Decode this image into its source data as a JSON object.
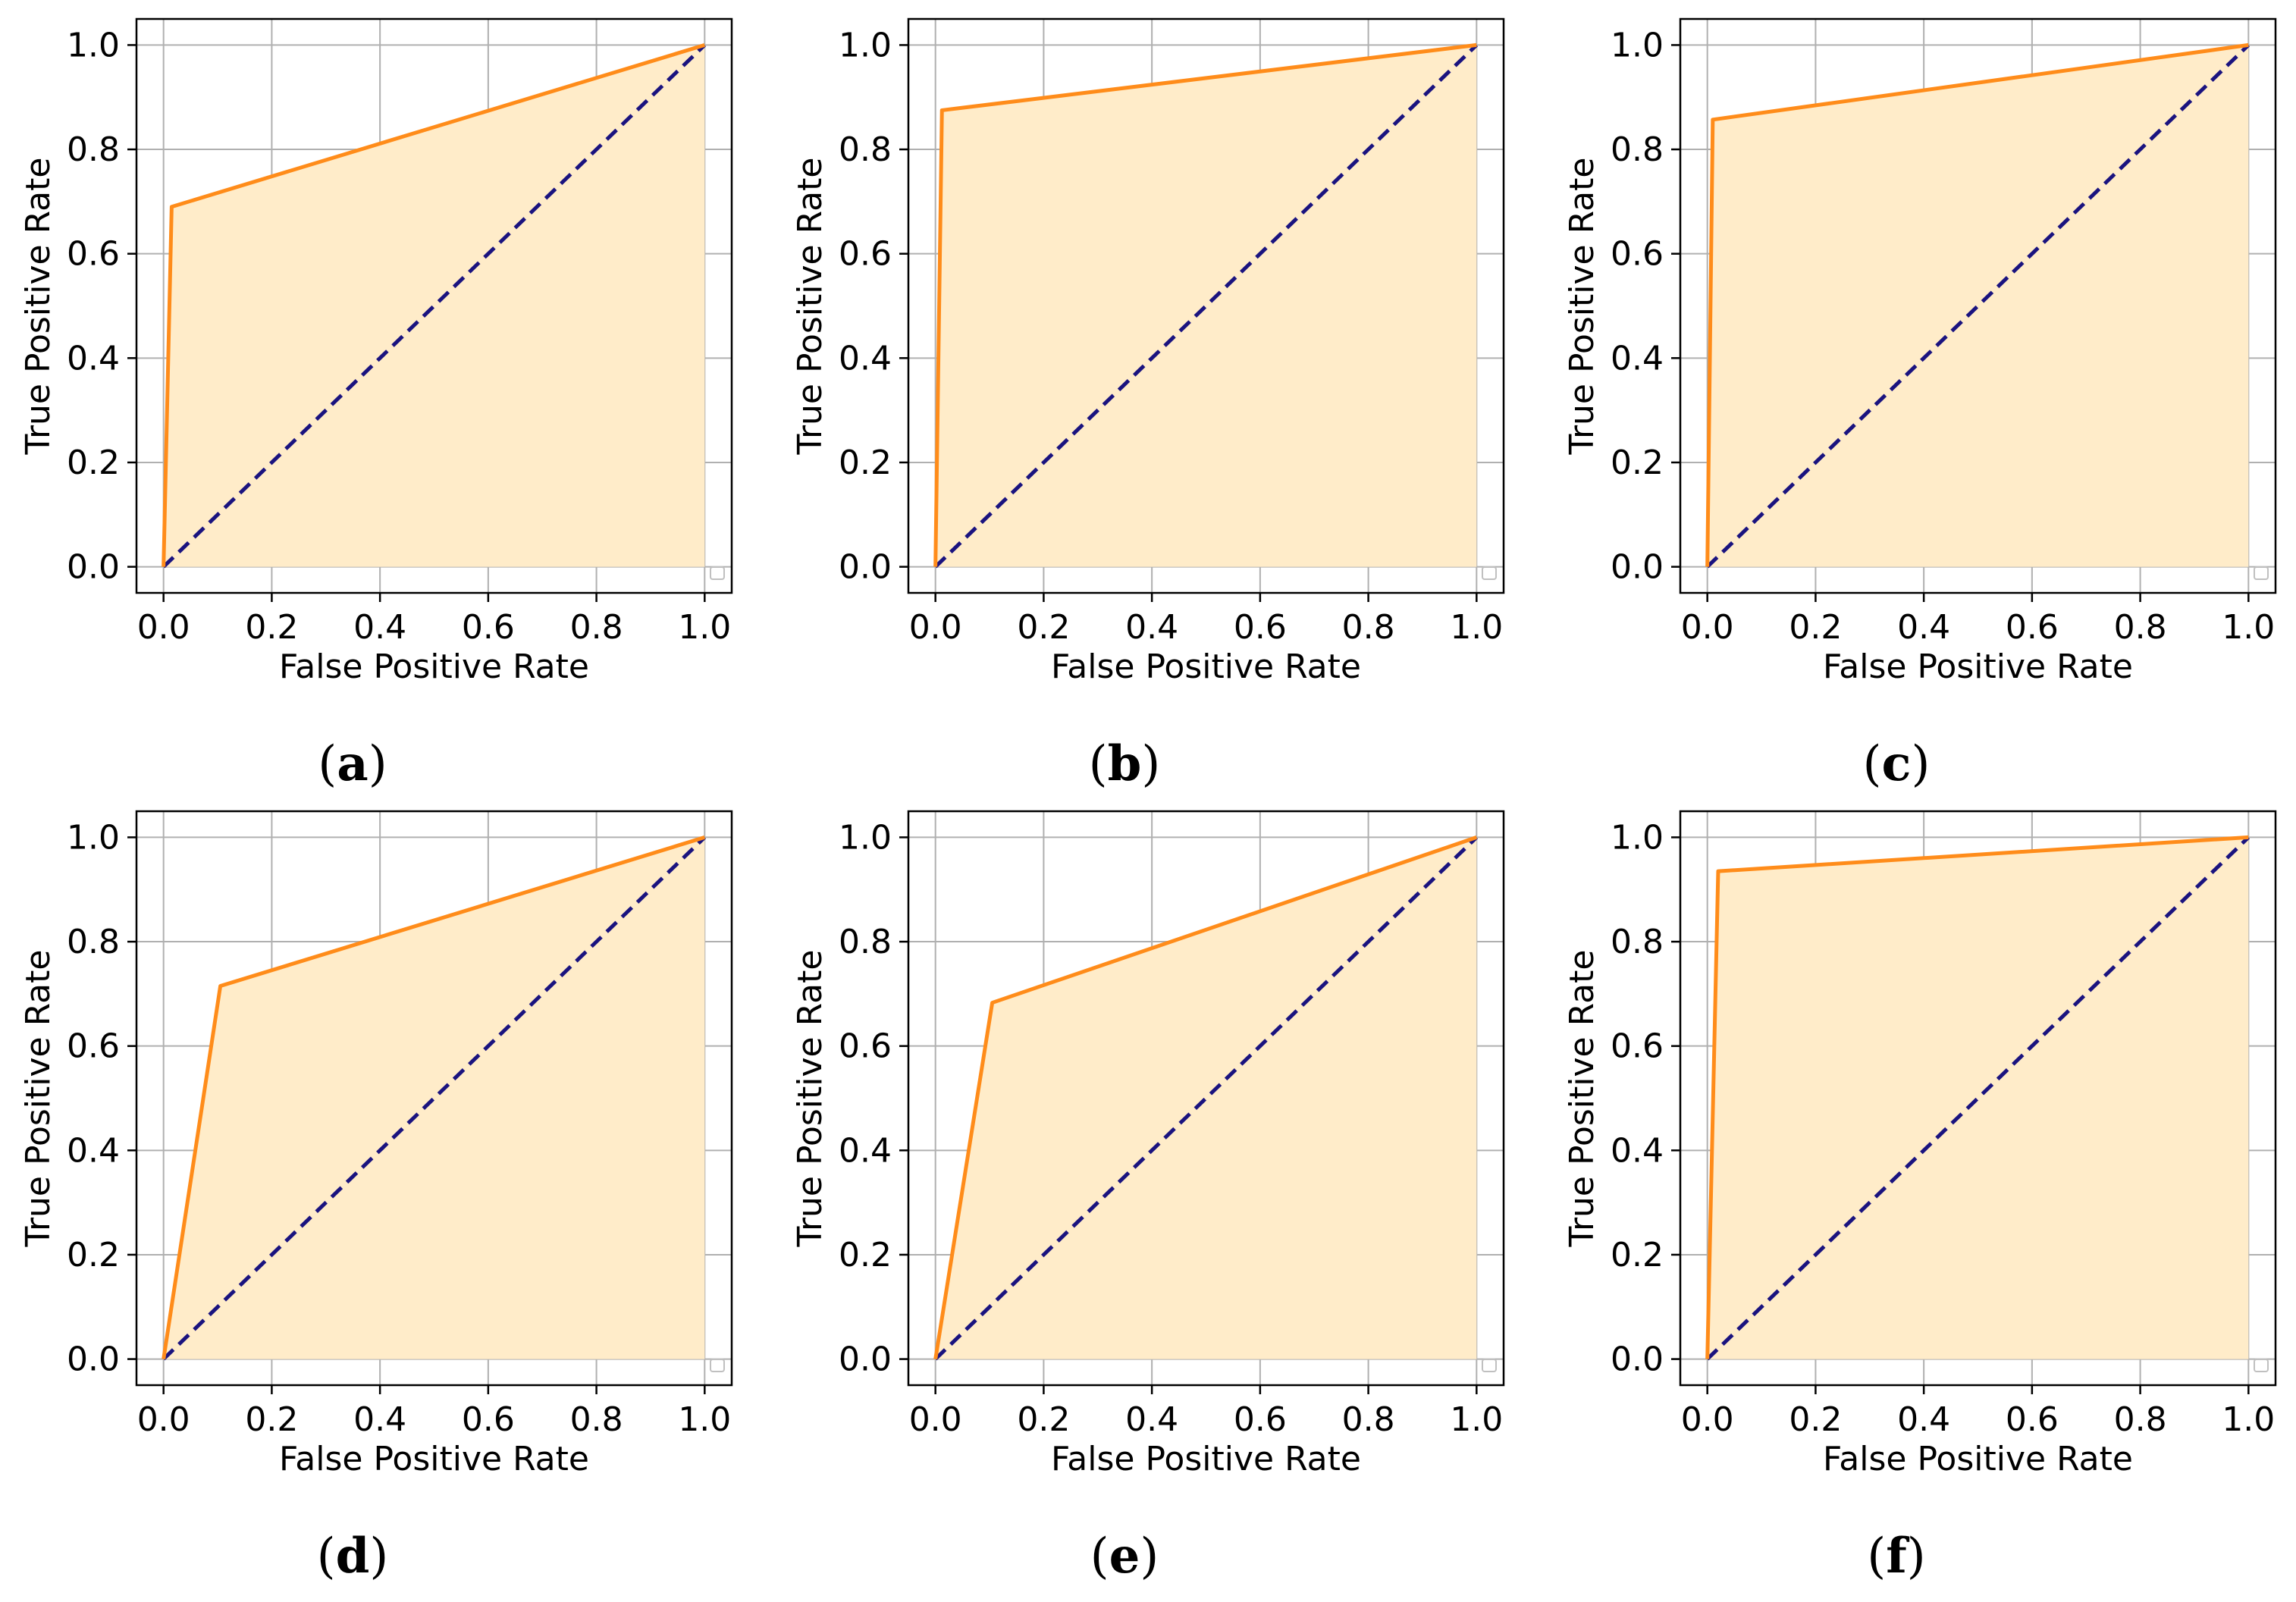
{
  "figure": {
    "colors": {
      "roc_line": "#ff8c1a",
      "roc_fill": "#ffecc9",
      "diagonal": "#1a137f",
      "grid": "#b0b0b0",
      "axes": "#000000"
    }
  },
  "chart_data": [
    {
      "type": "line",
      "panel": "a",
      "caption_label": "a",
      "x": [
        0.0,
        0.015,
        1.0
      ],
      "y": [
        0.0,
        0.69,
        1.0
      ],
      "diagonal": {
        "x": [
          0,
          1
        ],
        "y": [
          0,
          1
        ],
        "style": "dashed"
      },
      "fill_under": true,
      "xlabel": "False Positive Rate",
      "ylabel": "True Positive Rate",
      "xlim": [
        -0.05,
        1.05
      ],
      "ylim": [
        -0.05,
        1.05
      ],
      "xticks": [
        "0.0",
        "0.2",
        "0.4",
        "0.6",
        "0.8",
        "1.0"
      ],
      "yticks": [
        "0.0",
        "0.2",
        "0.4",
        "0.6",
        "0.8",
        "1.0"
      ],
      "grid": true,
      "legend": "bottom-right (empty)"
    },
    {
      "type": "line",
      "panel": "b",
      "caption_label": "b",
      "x": [
        0.0,
        0.012,
        1.0
      ],
      "y": [
        0.0,
        0.875,
        1.0
      ],
      "diagonal": {
        "x": [
          0,
          1
        ],
        "y": [
          0,
          1
        ],
        "style": "dashed"
      },
      "fill_under": true,
      "xlabel": "False Positive Rate",
      "ylabel": "True Positive Rate",
      "xlim": [
        -0.05,
        1.05
      ],
      "ylim": [
        -0.05,
        1.05
      ],
      "xticks": [
        "0.0",
        "0.2",
        "0.4",
        "0.6",
        "0.8",
        "1.0"
      ],
      "yticks": [
        "0.0",
        "0.2",
        "0.4",
        "0.6",
        "0.8",
        "1.0"
      ],
      "grid": true,
      "legend": "bottom-right (empty)"
    },
    {
      "type": "line",
      "panel": "c",
      "caption_label": "c",
      "x": [
        0.0,
        0.01,
        1.0
      ],
      "y": [
        0.0,
        0.857,
        1.0
      ],
      "diagonal": {
        "x": [
          0,
          1
        ],
        "y": [
          0,
          1
        ],
        "style": "dashed"
      },
      "fill_under": true,
      "xlabel": "False Positive Rate",
      "ylabel": "True Positive Rate",
      "xlim": [
        -0.05,
        1.05
      ],
      "ylim": [
        -0.05,
        1.05
      ],
      "xticks": [
        "0.0",
        "0.2",
        "0.4",
        "0.6",
        "0.8",
        "1.0"
      ],
      "yticks": [
        "0.0",
        "0.2",
        "0.4",
        "0.6",
        "0.8",
        "1.0"
      ],
      "grid": true,
      "legend": "bottom-right (empty)"
    },
    {
      "type": "line",
      "panel": "d",
      "caption_label": "d",
      "x": [
        0.0,
        0.105,
        1.0
      ],
      "y": [
        0.0,
        0.715,
        1.0
      ],
      "diagonal": {
        "x": [
          0,
          1
        ],
        "y": [
          0,
          1
        ],
        "style": "dashed"
      },
      "fill_under": true,
      "xlabel": "False Positive Rate",
      "ylabel": "True Positive Rate",
      "xlim": [
        -0.05,
        1.05
      ],
      "ylim": [
        -0.05,
        1.05
      ],
      "xticks": [
        "0.0",
        "0.2",
        "0.4",
        "0.6",
        "0.8",
        "1.0"
      ],
      "yticks": [
        "0.0",
        "0.2",
        "0.4",
        "0.6",
        "0.8",
        "1.0"
      ],
      "grid": true,
      "legend": "bottom-right (empty)"
    },
    {
      "type": "line",
      "panel": "e",
      "caption_label": "e",
      "x": [
        0.0,
        0.105,
        1.0
      ],
      "y": [
        0.0,
        0.683,
        1.0
      ],
      "diagonal": {
        "x": [
          0,
          1
        ],
        "y": [
          0,
          1
        ],
        "style": "dashed"
      },
      "fill_under": true,
      "xlabel": "False Positive Rate",
      "ylabel": "True Positive Rate",
      "xlim": [
        -0.05,
        1.05
      ],
      "ylim": [
        -0.05,
        1.05
      ],
      "xticks": [
        "0.0",
        "0.2",
        "0.4",
        "0.6",
        "0.8",
        "1.0"
      ],
      "yticks": [
        "0.0",
        "0.2",
        "0.4",
        "0.6",
        "0.8",
        "1.0"
      ],
      "grid": true,
      "legend": "bottom-right (empty)"
    },
    {
      "type": "line",
      "panel": "f",
      "caption_label": "f",
      "x": [
        0.0,
        0.02,
        1.0
      ],
      "y": [
        0.0,
        0.935,
        1.0
      ],
      "diagonal": {
        "x": [
          0,
          1
        ],
        "y": [
          0,
          1
        ],
        "style": "dashed"
      },
      "fill_under": true,
      "xlabel": "False Positive Rate",
      "ylabel": "True Positive Rate",
      "xlim": [
        -0.05,
        1.05
      ],
      "ylim": [
        -0.05,
        1.05
      ],
      "xticks": [
        "0.0",
        "0.2",
        "0.4",
        "0.6",
        "0.8",
        "1.0"
      ],
      "yticks": [
        "0.0",
        "0.2",
        "0.4",
        "0.6",
        "0.8",
        "1.0"
      ],
      "grid": true,
      "legend": "bottom-right (empty)"
    }
  ]
}
